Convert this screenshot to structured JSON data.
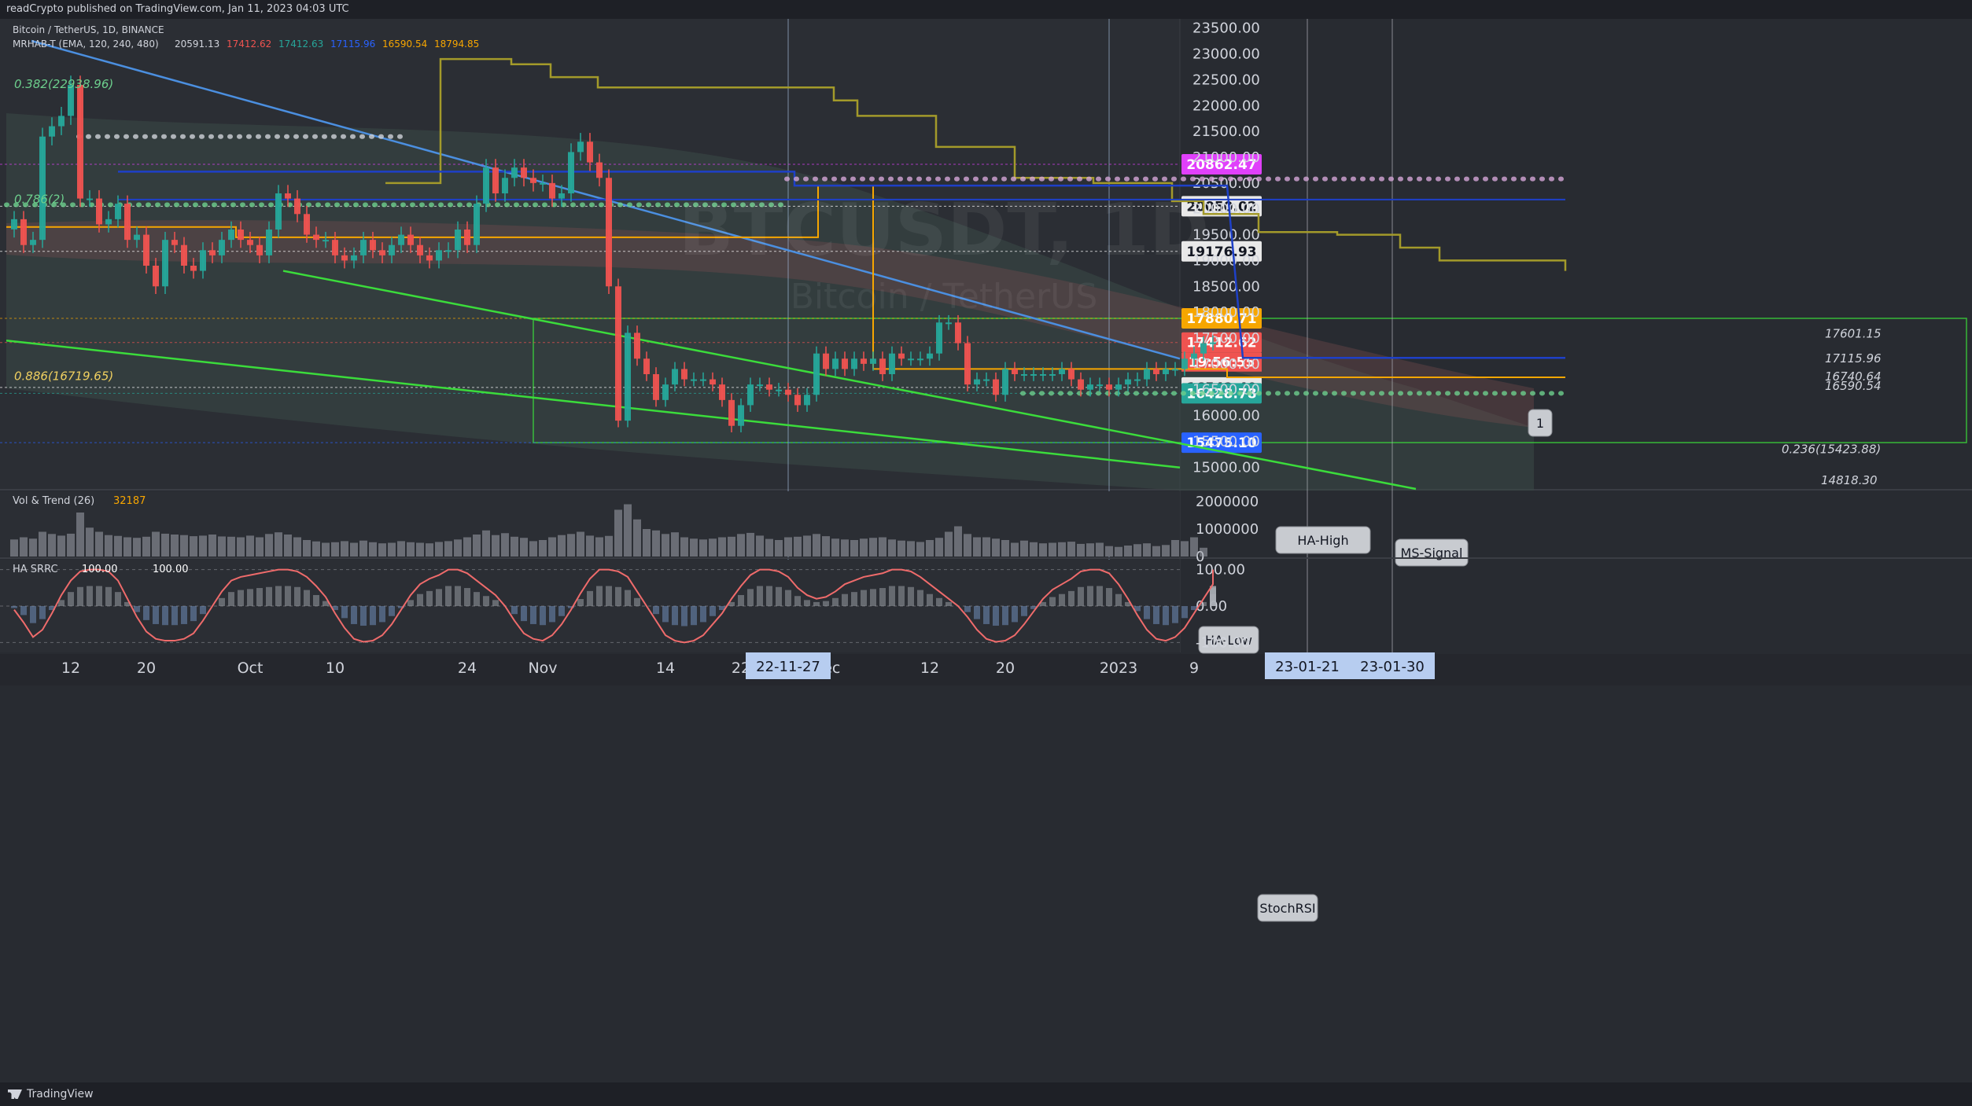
{
  "header": {
    "publisher_line": "readCrypto published on TradingView.com, Jan 11, 2023 04:03 UTC"
  },
  "footer": {
    "brand": "TradingView"
  },
  "legend": {
    "symbol_line": "Bitcoin / TetherUS, 1D, BINANCE",
    "indicator_line_prefix": "MRHAB-T (EMA, 120, 240, 480)",
    "indicator_values": [
      "20591.13",
      "17412.62",
      "17412.63",
      "17115.96",
      "16590.54",
      "18794.85"
    ],
    "vol_panel_label": "Vol & Trend (26)",
    "vol_panel_value": "32187",
    "stoch_panel_label": "HA SRRC",
    "stoch_panel_values": [
      "100.00",
      "100.00"
    ]
  },
  "watermark": {
    "symbol": "BTCUSDT, 1D",
    "name": "Bitcoin / TetherUS"
  },
  "colors": {
    "bull": "#26a69a",
    "bear": "#ef5350",
    "orange_line": "#f7a600",
    "olive_line": "#a39a2a",
    "blue_line": "#1e40c8",
    "trend_blue": "#4b8fe0",
    "green_line": "#3bdc3b",
    "magenta": "#e040fb"
  },
  "chart_data": [
    {
      "type": "candlestick",
      "panel": "price",
      "symbol": "BTCUSDT",
      "timeframe": "1D",
      "exchange": "BINANCE",
      "ylim": [
        14700,
        23800
      ],
      "y_ticks": [
        "15000.00",
        "15500.00",
        "16000.00",
        "16500.00",
        "17000.00",
        "17500.00",
        "18000.00",
        "18500.00",
        "19000.00",
        "19500.00",
        "20000.00",
        "20500.00",
        "21000.00",
        "21500.00",
        "22000.00",
        "22500.00",
        "23000.00",
        "23500.00"
      ],
      "x_ticks": [
        "12",
        "20",
        "Oct",
        "10",
        "24",
        "Nov",
        "14",
        "22",
        "Dec",
        "12",
        "20",
        "2023",
        "9"
      ],
      "x_date_labels": [
        "22-11-27",
        "23-01-21",
        "23-01-30"
      ],
      "close": [
        {
          "x": "2022-09-06",
          "y": 19800
        },
        {
          "x": "2022-09-07",
          "y": 19300
        },
        {
          "x": "2022-09-08",
          "y": 19400
        },
        {
          "x": "2022-09-09",
          "y": 21400
        },
        {
          "x": "2022-09-10",
          "y": 21600
        },
        {
          "x": "2022-09-11",
          "y": 21800
        },
        {
          "x": "2022-09-12",
          "y": 22400
        },
        {
          "x": "2022-09-13",
          "y": 20200
        },
        {
          "x": "2022-09-14",
          "y": 20200
        },
        {
          "x": "2022-09-15",
          "y": 19700
        },
        {
          "x": "2022-09-16",
          "y": 19800
        },
        {
          "x": "2022-09-17",
          "y": 20100
        },
        {
          "x": "2022-09-18",
          "y": 19400
        },
        {
          "x": "2022-09-19",
          "y": 19500
        },
        {
          "x": "2022-09-20",
          "y": 18900
        },
        {
          "x": "2022-09-21",
          "y": 18500
        },
        {
          "x": "2022-09-22",
          "y": 19400
        },
        {
          "x": "2022-09-23",
          "y": 19300
        },
        {
          "x": "2022-09-24",
          "y": 18900
        },
        {
          "x": "2022-09-25",
          "y": 18800
        },
        {
          "x": "2022-09-26",
          "y": 19200
        },
        {
          "x": "2022-09-27",
          "y": 19100
        },
        {
          "x": "2022-09-28",
          "y": 19400
        },
        {
          "x": "2022-09-29",
          "y": 19600
        },
        {
          "x": "2022-09-30",
          "y": 19400
        },
        {
          "x": "2022-10-01",
          "y": 19300
        },
        {
          "x": "2022-10-02",
          "y": 19100
        },
        {
          "x": "2022-10-03",
          "y": 19600
        },
        {
          "x": "2022-10-04",
          "y": 20300
        },
        {
          "x": "2022-10-05",
          "y": 20200
        },
        {
          "x": "2022-10-06",
          "y": 19900
        },
        {
          "x": "2022-10-07",
          "y": 19500
        },
        {
          "x": "2022-10-08",
          "y": 19400
        },
        {
          "x": "2022-10-09",
          "y": 19400
        },
        {
          "x": "2022-10-10",
          "y": 19100
        },
        {
          "x": "2022-10-11",
          "y": 19000
        },
        {
          "x": "2022-10-12",
          "y": 19100
        },
        {
          "x": "2022-10-13",
          "y": 19400
        },
        {
          "x": "2022-10-14",
          "y": 19200
        },
        {
          "x": "2022-10-15",
          "y": 19100
        },
        {
          "x": "2022-10-16",
          "y": 19300
        },
        {
          "x": "2022-10-17",
          "y": 19500
        },
        {
          "x": "2022-10-18",
          "y": 19300
        },
        {
          "x": "2022-10-19",
          "y": 19100
        },
        {
          "x": "2022-10-20",
          "y": 19000
        },
        {
          "x": "2022-10-21",
          "y": 19200
        },
        {
          "x": "2022-10-22",
          "y": 19200
        },
        {
          "x": "2022-10-23",
          "y": 19600
        },
        {
          "x": "2022-10-24",
          "y": 19300
        },
        {
          "x": "2022-10-25",
          "y": 20100
        },
        {
          "x": "2022-10-26",
          "y": 20800
        },
        {
          "x": "2022-10-27",
          "y": 20300
        },
        {
          "x": "2022-10-28",
          "y": 20600
        },
        {
          "x": "2022-10-29",
          "y": 20800
        },
        {
          "x": "2022-10-30",
          "y": 20600
        },
        {
          "x": "2022-10-31",
          "y": 20500
        },
        {
          "x": "2022-11-01",
          "y": 20500
        },
        {
          "x": "2022-11-02",
          "y": 20200
        },
        {
          "x": "2022-11-03",
          "y": 20300
        },
        {
          "x": "2022-11-04",
          "y": 21100
        },
        {
          "x": "2022-11-05",
          "y": 21300
        },
        {
          "x": "2022-11-06",
          "y": 20900
        },
        {
          "x": "2022-11-07",
          "y": 20600
        },
        {
          "x": "2022-11-08",
          "y": 18500
        },
        {
          "x": "2022-11-09",
          "y": 15900
        },
        {
          "x": "2022-11-10",
          "y": 17600
        },
        {
          "x": "2022-11-11",
          "y": 17100
        },
        {
          "x": "2022-11-12",
          "y": 16800
        },
        {
          "x": "2022-11-13",
          "y": 16300
        },
        {
          "x": "2022-11-14",
          "y": 16600
        },
        {
          "x": "2022-11-15",
          "y": 16900
        },
        {
          "x": "2022-11-16",
          "y": 16700
        },
        {
          "x": "2022-11-17",
          "y": 16700
        },
        {
          "x": "2022-11-18",
          "y": 16700
        },
        {
          "x": "2022-11-19",
          "y": 16600
        },
        {
          "x": "2022-11-20",
          "y": 16300
        },
        {
          "x": "2022-11-21",
          "y": 15800
        },
        {
          "x": "2022-11-22",
          "y": 16200
        },
        {
          "x": "2022-11-23",
          "y": 16600
        },
        {
          "x": "2022-11-24",
          "y": 16600
        },
        {
          "x": "2022-11-25",
          "y": 16500
        },
        {
          "x": "2022-11-26",
          "y": 16500
        },
        {
          "x": "2022-11-27",
          "y": 16400
        },
        {
          "x": "2022-11-28",
          "y": 16200
        },
        {
          "x": "2022-11-29",
          "y": 16400
        },
        {
          "x": "2022-11-30",
          "y": 17200
        },
        {
          "x": "2022-12-01",
          "y": 16900
        },
        {
          "x": "2022-12-02",
          "y": 17100
        },
        {
          "x": "2022-12-03",
          "y": 16900
        },
        {
          "x": "2022-12-04",
          "y": 17100
        },
        {
          "x": "2022-12-05",
          "y": 17000
        },
        {
          "x": "2022-12-06",
          "y": 17100
        },
        {
          "x": "2022-12-07",
          "y": 16800
        },
        {
          "x": "2022-12-08",
          "y": 17200
        },
        {
          "x": "2022-12-09",
          "y": 17100
        },
        {
          "x": "2022-12-10",
          "y": 17100
        },
        {
          "x": "2022-12-11",
          "y": 17100
        },
        {
          "x": "2022-12-12",
          "y": 17200
        },
        {
          "x": "2022-12-13",
          "y": 17800
        },
        {
          "x": "2022-12-14",
          "y": 17800
        },
        {
          "x": "2022-12-15",
          "y": 17400
        },
        {
          "x": "2022-12-16",
          "y": 16600
        },
        {
          "x": "2022-12-17",
          "y": 16700
        },
        {
          "x": "2022-12-18",
          "y": 16700
        },
        {
          "x": "2022-12-19",
          "y": 16400
        },
        {
          "x": "2022-12-20",
          "y": 16900
        },
        {
          "x": "2022-12-21",
          "y": 16800
        },
        {
          "x": "2022-12-22",
          "y": 16800
        },
        {
          "x": "2022-12-23",
          "y": 16800
        },
        {
          "x": "2022-12-24",
          "y": 16800
        },
        {
          "x": "2022-12-25",
          "y": 16800
        },
        {
          "x": "2022-12-26",
          "y": 16900
        },
        {
          "x": "2022-12-27",
          "y": 16700
        },
        {
          "x": "2022-12-28",
          "y": 16500
        },
        {
          "x": "2022-12-29",
          "y": 16600
        },
        {
          "x": "2022-12-30",
          "y": 16600
        },
        {
          "x": "2022-12-31",
          "y": 16500
        },
        {
          "x": "2023-01-01",
          "y": 16600
        },
        {
          "x": "2023-01-02",
          "y": 16700
        },
        {
          "x": "2023-01-03",
          "y": 16700
        },
        {
          "x": "2023-01-04",
          "y": 16900
        },
        {
          "x": "2023-01-05",
          "y": 16800
        },
        {
          "x": "2023-01-06",
          "y": 16900
        },
        {
          "x": "2023-01-07",
          "y": 16900
        },
        {
          "x": "2023-01-08",
          "y": 17100
        },
        {
          "x": "2023-01-09",
          "y": 17200
        },
        {
          "x": "2023-01-10",
          "y": 17400
        },
        {
          "x": "2023-01-11",
          "y": 17412.62
        }
      ],
      "horizontal_levels": [
        {
          "label": "20862.47",
          "y": 20862.47,
          "color": "#e040fb"
        },
        {
          "label": "20050.02",
          "y": 20050.02,
          "color": "#ffffff"
        },
        {
          "label": "19176.93",
          "y": 19176.93,
          "color": "#ffffff"
        },
        {
          "label": "17880.71",
          "y": 17880.71,
          "color": "#f7a600"
        },
        {
          "label": "17412.62",
          "y": 17412.62,
          "color": "#ef5350"
        },
        {
          "label": "16542.40",
          "y": 16542.4,
          "color": "#ffffff"
        },
        {
          "label": "16428.78",
          "y": 16428.78,
          "color": "#26a69a"
        },
        {
          "label": "15475.10",
          "y": 15475.1,
          "color": "#2962ff"
        }
      ],
      "countdown": "19:56:55",
      "level_annotations": [
        "17601.15",
        "17115.96",
        "16740.64",
        "16590.54",
        "0.886(16719.65)",
        "0.236(15423.88)",
        "0.786(2)",
        "14818.30",
        "0.382(22938.96)"
      ],
      "callouts": [
        "HA-High",
        "HA-Low",
        "MS-Signal",
        "StochRSI",
        "1"
      ]
    },
    {
      "type": "bar",
      "panel": "volume",
      "title": "Vol & Trend (26)",
      "y_ticks": [
        "0",
        "1000000",
        "2000000"
      ],
      "values": [
        620000,
        700000,
        650000,
        900000,
        820000,
        760000,
        830000,
        1600000,
        1050000,
        900000,
        780000,
        750000,
        700000,
        680000,
        720000,
        900000,
        830000,
        800000,
        780000,
        740000,
        760000,
        800000,
        730000,
        720000,
        700000,
        760000,
        700000,
        820000,
        880000,
        800000,
        700000,
        600000,
        550000,
        500000,
        520000,
        560000,
        500000,
        580000,
        520000,
        480000,
        500000,
        560000,
        520000,
        500000,
        480000,
        530000,
        560000,
        620000,
        700000,
        800000,
        950000,
        780000,
        850000,
        720000,
        680000,
        560000,
        600000,
        700000,
        780000,
        820000,
        900000,
        760000,
        700000,
        750000,
        1700000,
        1900000,
        1350000,
        1000000,
        950000,
        820000,
        880000,
        700000,
        650000,
        620000,
        650000,
        700000,
        720000,
        820000,
        860000,
        760000,
        640000,
        600000,
        700000,
        720000,
        760000,
        820000,
        740000,
        650000,
        620000,
        600000,
        650000,
        680000,
        700000,
        620000,
        580000,
        560000,
        530000,
        600000,
        680000,
        900000,
        1100000,
        820000,
        700000,
        700000,
        650000,
        600000,
        500000,
        580000,
        520000,
        480000,
        500000,
        520000,
        540000,
        460000,
        480000,
        500000,
        380000,
        350000,
        400000,
        450000,
        480000,
        380000,
        420000,
        600000,
        560000,
        700000,
        320000
      ]
    },
    {
      "type": "line",
      "panel": "oscillator",
      "title": "HA SRRC",
      "y_ticks": [
        "-100.00",
        "0.00",
        "100.00"
      ],
      "ylim": [
        -110,
        110
      ],
      "values": [
        -10,
        -45,
        -85,
        -65,
        -20,
        30,
        70,
        95,
        100,
        100,
        95,
        70,
        20,
        -30,
        -70,
        -90,
        -95,
        -95,
        -90,
        -75,
        -40,
        0,
        40,
        70,
        80,
        85,
        90,
        95,
        100,
        100,
        95,
        80,
        55,
        25,
        -20,
        -60,
        -90,
        -98,
        -95,
        -80,
        -50,
        -10,
        30,
        60,
        75,
        85,
        100,
        100,
        90,
        70,
        50,
        30,
        0,
        -40,
        -75,
        -90,
        -95,
        -80,
        -50,
        -10,
        35,
        75,
        100,
        100,
        95,
        80,
        40,
        0,
        -40,
        -80,
        -95,
        -100,
        -95,
        -80,
        -50,
        -20,
        20,
        55,
        85,
        100,
        100,
        95,
        80,
        50,
        30,
        20,
        25,
        40,
        60,
        70,
        80,
        85,
        90,
        100,
        100,
        95,
        80,
        60,
        40,
        20,
        0,
        -30,
        -65,
        -90,
        -98,
        -95,
        -80,
        -50,
        -15,
        20,
        45,
        60,
        75,
        95,
        100,
        100,
        90,
        60,
        20,
        -25,
        -65,
        -90,
        -95,
        -85,
        -60,
        -20,
        20,
        60,
        90,
        100,
        100,
        100
      ]
    }
  ]
}
